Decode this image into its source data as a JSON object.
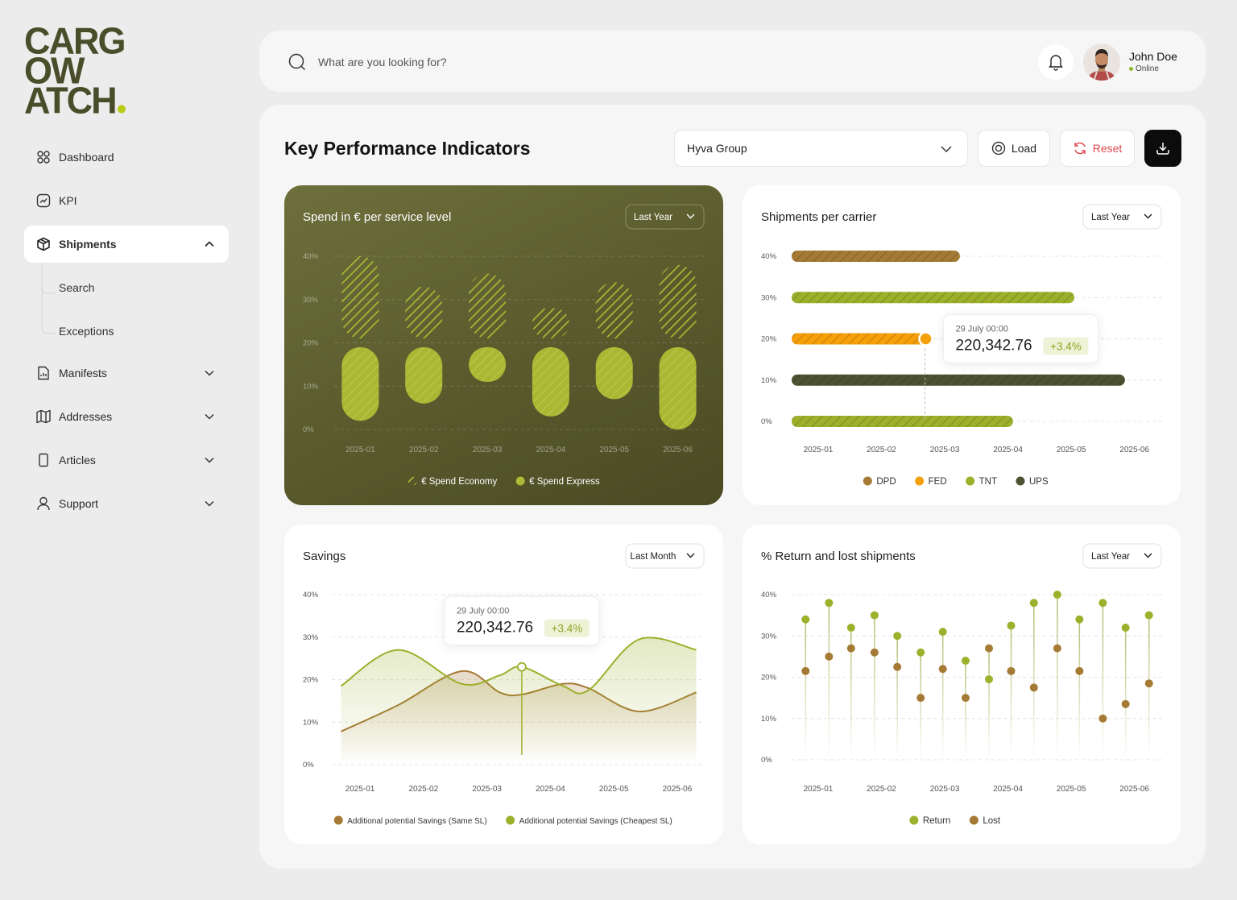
{
  "logo": [
    "CARG",
    "OW",
    "ATCH"
  ],
  "nav": [
    {
      "label": "Dashboard"
    },
    {
      "label": "KPI"
    },
    {
      "label": "Shipments",
      "children": [
        "Search",
        "Exceptions"
      ]
    },
    {
      "label": "Manifests"
    },
    {
      "label": "Addresses"
    },
    {
      "label": "Articles"
    },
    {
      "label": "Support"
    }
  ],
  "search_placeholder": "What are you looking for?",
  "user": {
    "name": "John Doe",
    "status": "Online"
  },
  "page_title": "Key Performance Indicators",
  "filter": "Hyva Group",
  "buttons": [
    "Load",
    "Reset"
  ],
  "chart_data": [
    {
      "type": "range_bar",
      "title": "Spend in € per service level",
      "period": "Last Year",
      "categories": [
        "2025-01",
        "2025-02",
        "2025-03",
        "2025-04",
        "2025-05",
        "2025-06"
      ],
      "series": [
        {
          "name": "€ Spend Economy",
          "color": "#a9b833",
          "fill_style": "hatched",
          "low": [
            21,
            21,
            21,
            21,
            21,
            21
          ],
          "high": [
            40,
            33,
            36,
            28,
            34,
            38
          ]
        },
        {
          "name": "€ Spend Express",
          "color": "#a9b833",
          "fill_style": "solid",
          "low": [
            2,
            6,
            11,
            3,
            7,
            0
          ],
          "high": [
            19,
            19,
            19,
            19,
            19,
            19
          ]
        }
      ],
      "ylim": [
        0,
        40
      ],
      "yticks": [
        {
          "value": 0,
          "label": "0%"
        },
        {
          "value": 10,
          "label": "10%"
        },
        {
          "value": 20,
          "label": "20%"
        },
        {
          "value": 30,
          "label": "30%"
        },
        {
          "value": 40,
          "label": "40%"
        }
      ],
      "grid": true,
      "legend": "bottom"
    },
    {
      "type": "hbar",
      "title": "Shipments per carrier",
      "period": "Last Year",
      "categories": [
        "40%",
        "30%",
        "20%",
        "10%",
        "0%"
      ],
      "values": [
        3.24,
        5.05,
        2.7,
        5.85,
        4.08
      ],
      "colors": [
        "#a57a35",
        "#9cb02b",
        "#f59f0a",
        "#4d5232",
        "#9cb02b"
      ],
      "legend_items": [
        {
          "name": "DPD",
          "color": "#a57a35"
        },
        {
          "name": "FED",
          "color": "#f59f0a"
        },
        {
          "name": "TNT",
          "color": "#9cb02b"
        },
        {
          "name": "UPS",
          "color": "#4d5232"
        }
      ],
      "xlim": [
        0.58,
        6.45
      ],
      "xticks": [
        {
          "value": 1,
          "label": "2025-01"
        },
        {
          "value": 2,
          "label": "2025-02"
        },
        {
          "value": 3,
          "label": "2025-03"
        },
        {
          "value": 4,
          "label": "2025-04"
        },
        {
          "value": 5,
          "label": "2025-05"
        },
        {
          "value": 6,
          "label": "2025-06"
        }
      ],
      "grid": true,
      "legend": "bottom",
      "tooltip": {
        "date": "29 July 00:00",
        "value": "220,342.76",
        "change": "+3.4%"
      }
    },
    {
      "type": "area",
      "title": "Savings",
      "period": "Last Month",
      "x": [
        0.7,
        1.6,
        2.6,
        3.2,
        3.55,
        4.2,
        4.6,
        5.4,
        6.3
      ],
      "series": [
        {
          "name": "Additional potential Savings (Same SL)",
          "color": "#a57a35",
          "values": [
            7.8,
            14,
            22,
            17,
            16.5,
            19,
            18,
            12.5,
            17
          ]
        },
        {
          "name": "Additional potential Savings (Cheapest SL)",
          "color": "#9cb02b",
          "values": [
            18.5,
            27,
            19,
            21,
            23,
            18.5,
            17.5,
            29.5,
            27
          ]
        }
      ],
      "xlim": [
        0.7,
        6.3
      ],
      "xticks": [
        {
          "value": 1,
          "label": "2025-01"
        },
        {
          "value": 2,
          "label": "2025-02"
        },
        {
          "value": 3,
          "label": "2025-03"
        },
        {
          "value": 4,
          "label": "2025-04"
        },
        {
          "value": 5,
          "label": "2025-05"
        },
        {
          "value": 6,
          "label": "2025-06"
        }
      ],
      "ylim": [
        0,
        40
      ],
      "yticks": [
        {
          "value": 0,
          "label": "0%"
        },
        {
          "value": 10,
          "label": "10%"
        },
        {
          "value": 20,
          "label": "20%"
        },
        {
          "value": 30,
          "label": "30%"
        },
        {
          "value": 40,
          "label": "40%"
        }
      ],
      "grid": true,
      "legend": "bottom",
      "tooltip": {
        "date": "29 July 00:00",
        "value": "220,342.76",
        "change": "+3.4%"
      }
    },
    {
      "type": "lollipop",
      "title": "% Return and lost shipments",
      "period": "Last Year",
      "x": [
        0.8,
        1.17,
        1.52,
        1.89,
        2.25,
        2.62,
        2.97,
        3.33,
        3.7,
        4.05,
        4.41,
        4.78,
        5.13,
        5.5,
        5.86,
        6.23
      ],
      "series": [
        {
          "name": "Return",
          "color": "#9cb02b",
          "values": [
            34,
            38,
            32,
            35,
            30,
            26,
            31,
            24,
            19.5,
            32.5,
            38,
            40,
            34,
            38,
            32,
            35
          ]
        },
        {
          "name": "Lost",
          "color": "#a57a35",
          "values": [
            21.5,
            25,
            27,
            26,
            22.5,
            15,
            22,
            15,
            27,
            21.5,
            17.5,
            27,
            21.5,
            10,
            13.5,
            18.5
          ]
        }
      ],
      "xlim": [
        0.58,
        6.45
      ],
      "xticks": [
        {
          "value": 1,
          "label": "2025-01"
        },
        {
          "value": 2,
          "label": "2025-02"
        },
        {
          "value": 3,
          "label": "2025-03"
        },
        {
          "value": 4,
          "label": "2025-04"
        },
        {
          "value": 5,
          "label": "2025-05"
        },
        {
          "value": 6,
          "label": "2025-06"
        }
      ],
      "ylim": [
        0,
        40
      ],
      "yticks": [
        {
          "value": 0,
          "label": "0%"
        },
        {
          "value": 10,
          "label": "10%"
        },
        {
          "value": 20,
          "label": "20%"
        },
        {
          "value": 30,
          "label": "30%"
        },
        {
          "value": 40,
          "label": "40%"
        }
      ],
      "grid": true,
      "legend": "bottom"
    }
  ]
}
